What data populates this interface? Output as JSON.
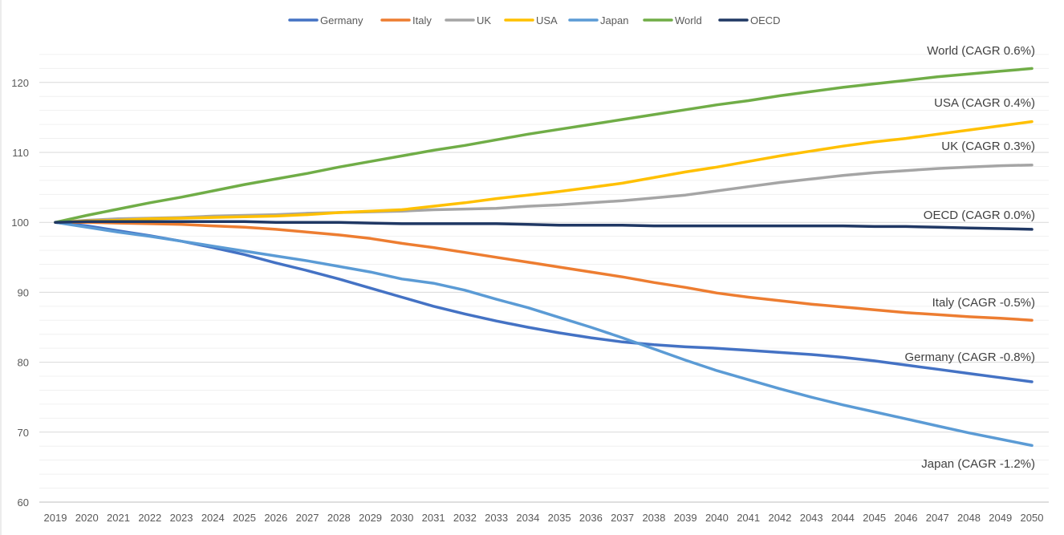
{
  "chart_data": {
    "type": "line",
    "title": "",
    "xlabel": "",
    "ylabel": "",
    "ylim": [
      60,
      125
    ],
    "yticks": [
      60,
      70,
      80,
      90,
      100,
      110,
      120
    ],
    "grid": true,
    "legend_position": "top",
    "x": [
      2019,
      2020,
      2021,
      2022,
      2023,
      2024,
      2025,
      2026,
      2027,
      2028,
      2029,
      2030,
      2031,
      2032,
      2033,
      2034,
      2035,
      2036,
      2037,
      2038,
      2039,
      2040,
      2041,
      2042,
      2043,
      2044,
      2045,
      2046,
      2047,
      2048,
      2049,
      2050
    ],
    "x_labels": [
      "2019",
      "2020",
      "2021",
      "2022",
      "2023",
      "2024",
      "2025",
      "2026",
      "2027",
      "2028",
      "2029",
      "2030",
      "2031",
      "2032",
      "2033",
      "2034",
      "2035",
      "2036",
      "2037",
      "2038",
      "2039",
      "2040",
      "2041",
      "2042",
      "2043",
      "2044",
      "2045",
      "2046",
      "2047",
      "2048",
      "2049",
      "2050"
    ],
    "series": [
      {
        "name": "Germany",
        "color": "#4472C4",
        "end_label": "Germany (CAGR -0.8%)",
        "values": [
          100,
          99.5,
          98.8,
          98.1,
          97.3,
          96.4,
          95.4,
          94.2,
          93.1,
          91.9,
          90.6,
          89.3,
          88.0,
          86.9,
          85.9,
          85.0,
          84.2,
          83.5,
          82.9,
          82.5,
          82.2,
          82.0,
          81.7,
          81.4,
          81.1,
          80.7,
          80.2,
          79.6,
          79.0,
          78.4,
          77.8,
          77.2
        ]
      },
      {
        "name": "Italy",
        "color": "#ED7D31",
        "end_label": "Italy (CAGR -0.5%)",
        "values": [
          100,
          100,
          99.9,
          99.8,
          99.7,
          99.5,
          99.3,
          99.0,
          98.6,
          98.2,
          97.7,
          97.0,
          96.4,
          95.7,
          95.0,
          94.3,
          93.6,
          92.9,
          92.2,
          91.4,
          90.7,
          89.9,
          89.3,
          88.8,
          88.3,
          87.9,
          87.5,
          87.1,
          86.8,
          86.5,
          86.3,
          86.0
        ]
      },
      {
        "name": "UK",
        "color": "#A5A5A5",
        "end_label": "UK (CAGR 0.3%)",
        "values": [
          100,
          100.3,
          100.5,
          100.6,
          100.7,
          100.9,
          101.0,
          101.1,
          101.3,
          101.4,
          101.5,
          101.6,
          101.8,
          101.9,
          102.0,
          102.3,
          102.5,
          102.8,
          103.1,
          103.5,
          103.9,
          104.5,
          105.1,
          105.7,
          106.2,
          106.7,
          107.1,
          107.4,
          107.7,
          107.9,
          108.1,
          108.2
        ]
      },
      {
        "name": "USA",
        "color": "#FFC000",
        "end_label": "USA (CAGR 0.4%)",
        "values": [
          100,
          100.2,
          100.3,
          100.5,
          100.6,
          100.7,
          100.8,
          100.9,
          101.1,
          101.4,
          101.6,
          101.8,
          102.3,
          102.8,
          103.4,
          103.9,
          104.4,
          105.0,
          105.6,
          106.4,
          107.2,
          107.9,
          108.7,
          109.5,
          110.2,
          110.9,
          111.5,
          112.0,
          112.6,
          113.2,
          113.8,
          114.4
        ]
      },
      {
        "name": "Japan",
        "color": "#5B9BD5",
        "end_label": "Japan (CAGR -1.2%)",
        "values": [
          100,
          99.3,
          98.6,
          98.0,
          97.3,
          96.6,
          95.9,
          95.2,
          94.5,
          93.7,
          92.9,
          91.9,
          91.3,
          90.3,
          89.0,
          87.8,
          86.4,
          85.0,
          83.5,
          81.9,
          80.3,
          78.8,
          77.5,
          76.2,
          75.0,
          73.9,
          72.9,
          71.9,
          70.9,
          69.9,
          69.0,
          68.1
        ]
      },
      {
        "name": "World",
        "color": "#70AD47",
        "end_label": "World (CAGR 0.6%)",
        "values": [
          100,
          101.0,
          101.9,
          102.8,
          103.6,
          104.5,
          105.4,
          106.2,
          107.0,
          107.9,
          108.7,
          109.5,
          110.3,
          111.0,
          111.8,
          112.6,
          113.3,
          114.0,
          114.7,
          115.4,
          116.1,
          116.8,
          117.4,
          118.1,
          118.7,
          119.3,
          119.8,
          120.3,
          120.8,
          121.2,
          121.6,
          122.0
        ]
      },
      {
        "name": "OECD",
        "color": "#203864",
        "end_label": "OECD (CAGR 0.0%)",
        "values": [
          100,
          100.1,
          100.1,
          100.1,
          100.1,
          100.1,
          100.1,
          100.0,
          100.0,
          100.0,
          99.9,
          99.8,
          99.8,
          99.8,
          99.8,
          99.7,
          99.6,
          99.6,
          99.6,
          99.5,
          99.5,
          99.5,
          99.5,
          99.5,
          99.5,
          99.5,
          99.4,
          99.4,
          99.3,
          99.2,
          99.1,
          99.0
        ]
      }
    ]
  }
}
